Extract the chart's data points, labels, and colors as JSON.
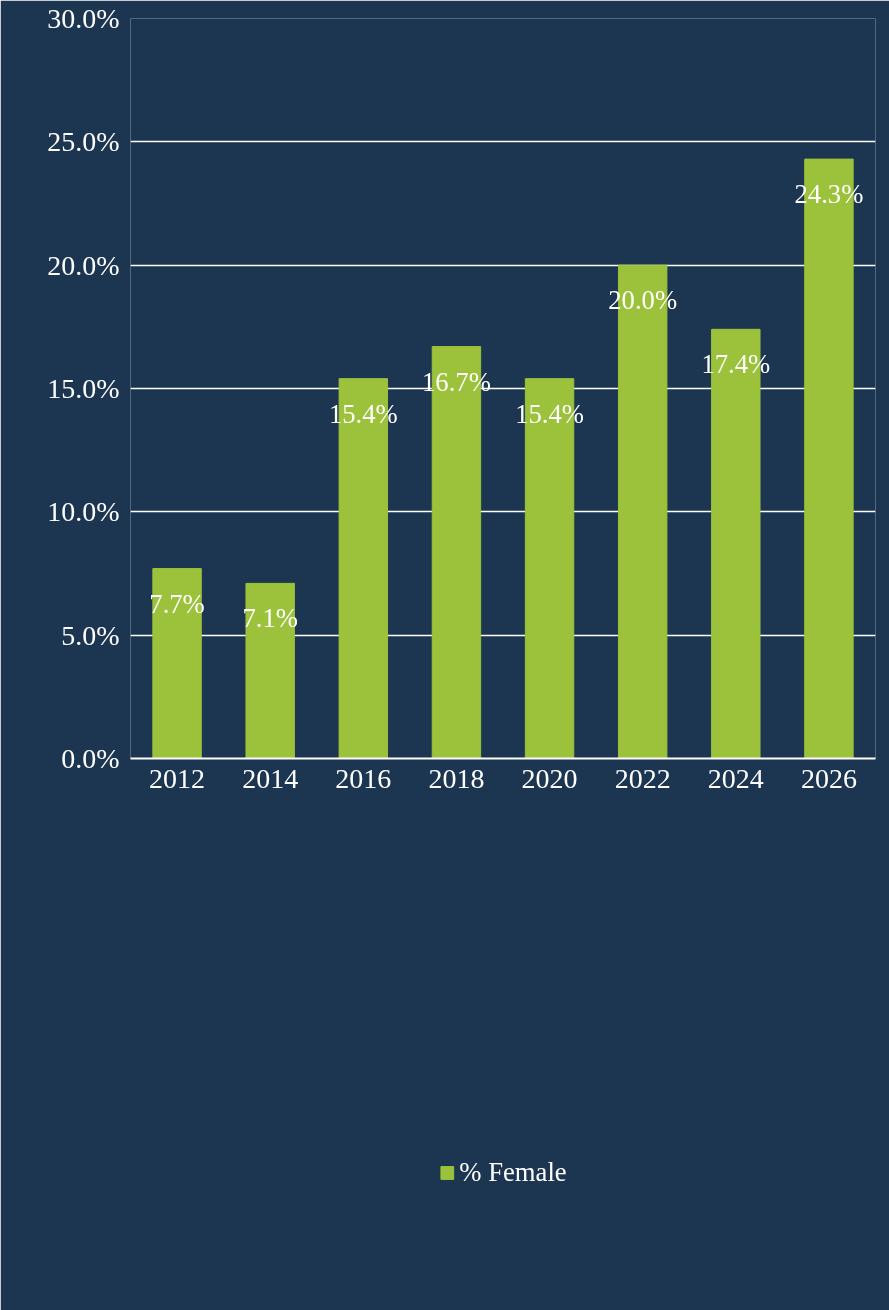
{
  "chart_data": {
    "type": "bar",
    "categories": [
      "2012",
      "2014",
      "2016",
      "2018",
      "2020",
      "2022",
      "2024",
      "2026"
    ],
    "series": [
      {
        "name": "% Female",
        "color": "#9bc23a",
        "values": [
          7.7,
          7.1,
          15.4,
          16.7,
          15.4,
          20.0,
          17.4,
          24.3
        ],
        "value_labels": [
          "7.7%",
          "7.1%",
          "15.4%",
          "16.7%",
          "15.4%",
          "20.0%",
          "17.4%",
          "24.3%"
        ]
      }
    ],
    "ylim": [
      0,
      30
    ],
    "yticks": [
      {
        "value": 0,
        "label": "0.0%"
      },
      {
        "value": 5,
        "label": "5.0%"
      },
      {
        "value": 10,
        "label": "10.0%"
      },
      {
        "value": 15,
        "label": "15.0%"
      },
      {
        "value": 20,
        "label": "20.0%"
      },
      {
        "value": 25,
        "label": "25.0%"
      },
      {
        "value": 30,
        "label": "30.0%"
      }
    ],
    "grid": "y",
    "legend": "bottom"
  }
}
